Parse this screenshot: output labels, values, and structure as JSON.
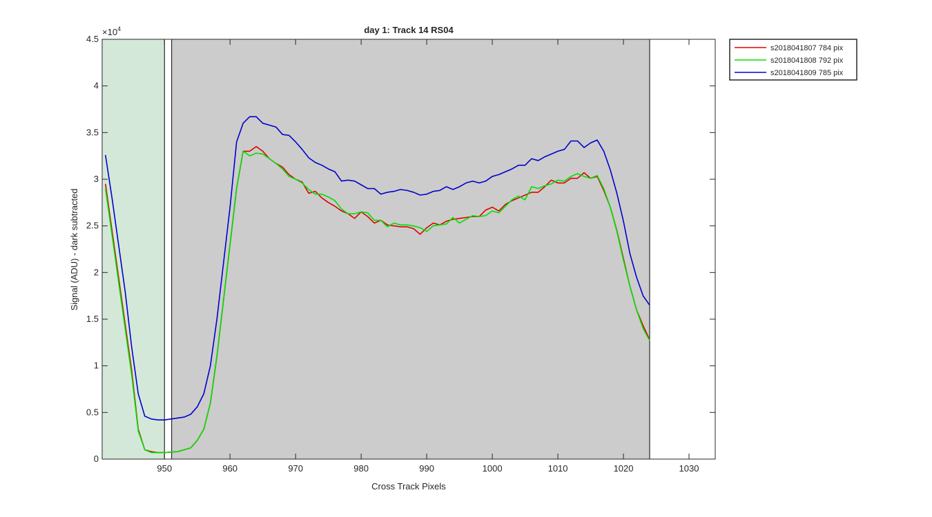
{
  "chart_data": {
    "type": "line",
    "title": "day 1: Track 14  RS04",
    "xlabel": "Cross Track Pixels",
    "ylabel": "Signal (ADU) - dark subtracted",
    "y_exponent_label": "×10",
    "y_exponent_power": "4",
    "xlim": [
      940.5,
      1034
    ],
    "ylim": [
      0,
      45000
    ],
    "x_ticks": [
      950,
      960,
      970,
      980,
      990,
      1000,
      1010,
      1020,
      1030
    ],
    "x_tick_labels": [
      "950",
      "960",
      "970",
      "980",
      "990",
      "1000",
      "1010",
      "1020",
      "1030"
    ],
    "y_ticks": [
      0,
      5000,
      10000,
      15000,
      20000,
      25000,
      30000,
      35000,
      40000,
      45000
    ],
    "y_tick_labels": [
      "0",
      "0.5",
      "1",
      "1.5",
      "2",
      "2.5",
      "3",
      "3.5",
      "4",
      "4.5"
    ],
    "grid": false,
    "legend_placement": "outside-top-right",
    "regions": [
      {
        "x0": 940.5,
        "x1": 950.0,
        "color": "#d4e8da"
      },
      {
        "x0": 951.1,
        "x1": 1024.0,
        "color": "#cccccc"
      }
    ],
    "x": [
      941,
      942,
      943,
      944,
      945,
      946,
      947,
      948,
      949,
      950,
      951,
      952,
      953,
      954,
      955,
      956,
      957,
      958,
      959,
      960,
      961,
      962,
      963,
      964,
      965,
      966,
      967,
      968,
      969,
      970,
      971,
      972,
      973,
      974,
      975,
      976,
      977,
      978,
      979,
      980,
      981,
      982,
      983,
      984,
      985,
      986,
      987,
      988,
      989,
      990,
      991,
      992,
      993,
      994,
      995,
      996,
      997,
      998,
      999,
      1000,
      1001,
      1002,
      1003,
      1004,
      1005,
      1006,
      1007,
      1008,
      1009,
      1010,
      1011,
      1012,
      1013,
      1014,
      1015,
      1016,
      1017,
      1018,
      1019,
      1020,
      1021,
      1022,
      1023,
      1024
    ],
    "series": [
      {
        "name": "s2018041807 784 pix",
        "color": "#e00000",
        "values": [
          29500,
          24500,
          19500,
          14500,
          9500,
          3200,
          1000,
          800,
          700,
          700,
          750,
          800,
          1000,
          1200,
          2000,
          3200,
          6000,
          11000,
          17000,
          23000,
          29000,
          33000,
          33000,
          33500,
          33000,
          32200,
          31700,
          31300,
          30500,
          30000,
          29700,
          28500,
          28700,
          28000,
          27500,
          27100,
          26600,
          26300,
          25800,
          26500,
          26000,
          25300,
          25600,
          25100,
          25000,
          24900,
          24900,
          24700,
          24100,
          24800,
          25300,
          25100,
          25500,
          25700,
          25800,
          25900,
          26000,
          26000,
          26700,
          27000,
          26600,
          27300,
          27700,
          28000,
          28300,
          28600,
          28600,
          29200,
          29900,
          29600,
          29600,
          30100,
          30100,
          30700,
          30100,
          30300,
          28800,
          27000,
          24500,
          21500,
          18500,
          16000,
          14300,
          12800
        ]
      },
      {
        "name": "s2018041808 792 pix",
        "color": "#00e000",
        "values": [
          29000,
          24000,
          19000,
          14000,
          9000,
          3000,
          1000,
          700,
          700,
          700,
          750,
          800,
          1000,
          1200,
          2000,
          3200,
          6000,
          11000,
          17000,
          23000,
          29000,
          33000,
          32500,
          32800,
          32700,
          32200,
          31700,
          31100,
          30300,
          30000,
          29600,
          28900,
          28400,
          28400,
          28100,
          27700,
          26800,
          26300,
          26300,
          26500,
          26400,
          25600,
          25600,
          24900,
          25300,
          25100,
          25100,
          25000,
          24800,
          24400,
          25000,
          25100,
          25200,
          25900,
          25300,
          25700,
          26100,
          26000,
          26100,
          26600,
          26400,
          27100,
          27800,
          28200,
          27800,
          29200,
          29000,
          29300,
          29500,
          29900,
          29800,
          30300,
          30600,
          30300,
          30100,
          30400,
          29000,
          27000,
          24400,
          21300,
          18500,
          16000,
          14000,
          12700
        ]
      },
      {
        "name": "s2018041809 785 pix",
        "color": "#0000cc",
        "values": [
          32600,
          28000,
          23000,
          18000,
          12000,
          7000,
          4600,
          4300,
          4200,
          4200,
          4300,
          4400,
          4500,
          4800,
          5600,
          7000,
          10000,
          15000,
          21000,
          27000,
          34000,
          36000,
          36700,
          36700,
          36000,
          35800,
          35600,
          34800,
          34700,
          34000,
          33200,
          32300,
          31800,
          31500,
          31100,
          30800,
          29800,
          29900,
          29800,
          29400,
          29000,
          29000,
          28400,
          28600,
          28700,
          28900,
          28800,
          28600,
          28300,
          28400,
          28700,
          28800,
          29200,
          28900,
          29200,
          29600,
          29800,
          29600,
          29800,
          30300,
          30500,
          30800,
          31100,
          31500,
          31500,
          32200,
          32000,
          32400,
          32700,
          33000,
          33200,
          34100,
          34100,
          33400,
          33900,
          34200,
          33000,
          31000,
          28500,
          25500,
          22000,
          19500,
          17500,
          16500
        ]
      }
    ]
  }
}
